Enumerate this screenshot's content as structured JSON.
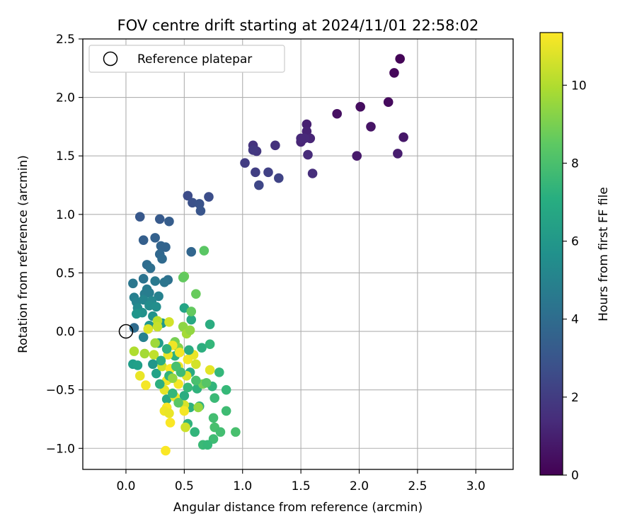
{
  "chart_data": {
    "type": "scatter",
    "title": "FOV centre drift starting at 2024/11/01 22:58:02",
    "xlabel": "Angular distance from reference (arcmin)",
    "ylabel": "Rotation from reference (arcmin)",
    "xlim": [
      -0.37,
      3.32
    ],
    "ylim": [
      -1.18,
      2.5
    ],
    "xticks": [
      0.0,
      0.5,
      1.0,
      1.5,
      2.0,
      2.5,
      3.0
    ],
    "xtick_labels": [
      "0.0",
      "0.5",
      "1.0",
      "1.5",
      "2.0",
      "2.5",
      "3.0"
    ],
    "yticks": [
      -1.0,
      -0.5,
      0.0,
      0.5,
      1.0,
      1.5,
      2.0,
      2.5
    ],
    "ytick_labels": [
      "−1.0",
      "−0.5",
      "0.0",
      "0.5",
      "1.0",
      "1.5",
      "2.0",
      "2.5"
    ],
    "grid": true,
    "legend": {
      "placement": "top-left",
      "label": "Reference platepar"
    },
    "reference_point": {
      "x": 0.0,
      "y": 0.0
    },
    "colorbar": {
      "label": "Hours from first FF file",
      "colormap": "viridis",
      "range": [
        0,
        11.35
      ],
      "ticks": [
        0,
        2,
        4,
        6,
        8,
        10
      ],
      "tick_labels": [
        "0",
        "2",
        "4",
        "6",
        "8",
        "10"
      ]
    },
    "series": [
      {
        "points": [
          [
            2.35,
            2.33,
            0.1
          ],
          [
            2.3,
            2.21,
            0.2
          ],
          [
            2.25,
            1.96,
            0.3
          ],
          [
            2.01,
            1.92,
            0.4
          ],
          [
            1.81,
            1.86,
            0.5
          ],
          [
            2.1,
            1.75,
            0.6
          ],
          [
            2.38,
            1.66,
            0.7
          ],
          [
            1.98,
            1.5,
            0.8
          ],
          [
            2.33,
            1.52,
            0.9
          ],
          [
            1.55,
            1.77,
            1.0
          ],
          [
            1.55,
            1.71,
            1.1
          ],
          [
            1.58,
            1.65,
            1.2
          ],
          [
            1.5,
            1.62,
            1.2
          ],
          [
            1.53,
            1.65,
            1.3
          ],
          [
            1.5,
            1.65,
            1.3
          ],
          [
            1.56,
            1.51,
            1.4
          ],
          [
            1.6,
            1.35,
            1.5
          ],
          [
            1.28,
            1.59,
            1.6
          ],
          [
            1.09,
            1.59,
            1.7
          ],
          [
            1.12,
            1.54,
            1.8
          ],
          [
            1.09,
            1.55,
            1.9
          ],
          [
            1.02,
            1.44,
            2.0
          ],
          [
            1.11,
            1.36,
            2.1
          ],
          [
            1.22,
            1.36,
            2.2
          ],
          [
            1.31,
            1.31,
            2.3
          ],
          [
            1.14,
            1.25,
            2.4
          ],
          [
            0.53,
            1.16,
            2.6
          ],
          [
            0.71,
            1.15,
            2.7
          ],
          [
            0.57,
            1.1,
            2.8
          ],
          [
            0.63,
            1.09,
            2.9
          ],
          [
            0.64,
            1.03,
            3.0
          ],
          [
            0.12,
            0.98,
            3.1
          ],
          [
            0.29,
            0.96,
            3.2
          ],
          [
            0.37,
            0.94,
            3.3
          ],
          [
            0.15,
            0.78,
            3.4
          ],
          [
            0.25,
            0.8,
            3.5
          ],
          [
            0.3,
            0.73,
            3.6
          ],
          [
            0.34,
            0.72,
            3.6
          ],
          [
            0.56,
            0.68,
            3.7
          ],
          [
            0.29,
            0.66,
            3.8
          ],
          [
            0.31,
            0.62,
            3.9
          ],
          [
            0.18,
            0.57,
            4.0
          ],
          [
            0.21,
            0.54,
            4.1
          ],
          [
            0.36,
            0.44,
            4.2
          ],
          [
            0.15,
            0.45,
            4.3
          ],
          [
            0.33,
            0.42,
            4.4
          ],
          [
            0.06,
            0.41,
            4.5
          ],
          [
            0.25,
            0.43,
            4.6
          ],
          [
            0.18,
            0.36,
            4.7
          ],
          [
            0.16,
            0.32,
            4.8
          ],
          [
            0.2,
            0.33,
            4.8
          ],
          [
            0.07,
            0.29,
            4.9
          ],
          [
            0.28,
            0.3,
            5.0
          ],
          [
            0.09,
            0.25,
            5.1
          ],
          [
            0.15,
            0.27,
            5.2
          ],
          [
            0.22,
            0.26,
            5.3
          ],
          [
            0.1,
            0.2,
            5.4
          ],
          [
            0.2,
            0.22,
            5.5
          ],
          [
            0.26,
            0.21,
            5.6
          ],
          [
            0.14,
            0.16,
            5.7
          ],
          [
            0.23,
            0.13,
            5.8
          ],
          [
            0.09,
            0.15,
            5.9
          ],
          [
            0.2,
            0.05,
            6.0
          ],
          [
            0.07,
            0.03,
            4.0
          ],
          [
            0.15,
            -0.05,
            5.0
          ],
          [
            0.31,
            0.07,
            6.1
          ],
          [
            0.28,
            -0.1,
            6.2
          ],
          [
            0.06,
            -0.28,
            6.3
          ],
          [
            0.1,
            -0.29,
            6.4
          ],
          [
            0.26,
            -0.36,
            6.5
          ],
          [
            0.5,
            0.2,
            6.6
          ],
          [
            0.56,
            0.1,
            6.8
          ],
          [
            0.72,
            0.06,
            7.0
          ],
          [
            0.42,
            -0.21,
            7.2
          ],
          [
            0.55,
            -0.35,
            6.9
          ],
          [
            0.65,
            -0.14,
            7.1
          ],
          [
            0.35,
            -0.58,
            6.8
          ],
          [
            0.5,
            -0.55,
            7.0
          ],
          [
            0.55,
            -0.65,
            7.2
          ],
          [
            0.61,
            -0.49,
            7.3
          ],
          [
            0.74,
            -0.47,
            7.4
          ],
          [
            0.8,
            -0.35,
            7.5
          ],
          [
            0.86,
            -0.5,
            7.6
          ],
          [
            0.76,
            -0.57,
            7.7
          ],
          [
            0.86,
            -0.68,
            7.8
          ],
          [
            0.75,
            -0.74,
            7.9
          ],
          [
            0.76,
            -0.82,
            8.0
          ],
          [
            0.81,
            -0.86,
            7.9
          ],
          [
            0.94,
            -0.86,
            8.0
          ],
          [
            0.75,
            -0.92,
            7.8
          ],
          [
            0.66,
            -0.97,
            7.7
          ],
          [
            0.7,
            -0.97,
            7.6
          ],
          [
            0.59,
            -0.86,
            7.4
          ],
          [
            0.53,
            -0.79,
            7.3
          ],
          [
            0.63,
            -0.64,
            7.2
          ],
          [
            0.72,
            -0.11,
            7.5
          ],
          [
            0.56,
            0.17,
            8.6
          ],
          [
            0.6,
            0.32,
            8.7
          ],
          [
            0.5,
            0.47,
            8.8
          ],
          [
            0.49,
            0.46,
            8.6
          ],
          [
            0.67,
            0.69,
            8.4
          ],
          [
            0.42,
            -0.09,
            9.0
          ],
          [
            0.45,
            -0.14,
            9.2
          ],
          [
            0.37,
            0.08,
            10.6
          ],
          [
            0.27,
            0.09,
            10.2
          ],
          [
            0.27,
            0.04,
            10.4
          ],
          [
            0.19,
            0.02,
            10.8
          ],
          [
            0.25,
            -0.1,
            9.7
          ],
          [
            0.16,
            -0.19,
            9.8
          ],
          [
            0.07,
            -0.17,
            10.0
          ],
          [
            0.24,
            -0.2,
            10.3
          ],
          [
            0.31,
            -0.3,
            10.5
          ],
          [
            0.36,
            -0.2,
            11.0
          ],
          [
            0.4,
            -0.12,
            11.1
          ],
          [
            0.46,
            -0.18,
            11.2
          ],
          [
            0.38,
            -0.32,
            11.3
          ],
          [
            0.45,
            -0.3,
            11.1
          ],
          [
            0.53,
            -0.24,
            11.2
          ],
          [
            0.58,
            -0.2,
            11.0
          ],
          [
            0.6,
            -0.28,
            10.6
          ],
          [
            0.72,
            -0.33,
            10.9
          ],
          [
            0.52,
            -0.38,
            10.8
          ],
          [
            0.35,
            -0.42,
            11.1
          ],
          [
            0.33,
            -0.5,
            10.9
          ],
          [
            0.45,
            -0.45,
            11.2
          ],
          [
            0.42,
            -0.56,
            11.0
          ],
          [
            0.5,
            -0.63,
            10.7
          ],
          [
            0.35,
            -0.65,
            11.3
          ],
          [
            0.33,
            -0.68,
            11.1
          ],
          [
            0.37,
            -0.7,
            11.0
          ],
          [
            0.38,
            -0.78,
            11.3
          ],
          [
            0.5,
            -0.68,
            11.2
          ],
          [
            0.51,
            -0.82,
            10.5
          ],
          [
            0.12,
            -0.38,
            11.0
          ],
          [
            0.17,
            -0.46,
            11.2
          ],
          [
            0.34,
            -1.02,
            11.3
          ],
          [
            0.49,
            0.04,
            9.4
          ],
          [
            0.52,
            -0.02,
            9.8
          ],
          [
            0.55,
            0.01,
            9.5
          ],
          [
            0.66,
            -0.45,
            9.0
          ],
          [
            0.69,
            -0.44,
            8.3
          ],
          [
            0.6,
            -0.42,
            8.0
          ],
          [
            0.53,
            -0.48,
            7.6
          ],
          [
            0.47,
            -0.35,
            7.8
          ],
          [
            0.4,
            -0.53,
            7.5
          ],
          [
            0.45,
            -0.61,
            8.4
          ],
          [
            0.62,
            -0.65,
            9.6
          ],
          [
            0.3,
            -0.25,
            7.0
          ],
          [
            0.37,
            -0.38,
            7.3
          ],
          [
            0.23,
            -0.28,
            6.0
          ],
          [
            0.35,
            -0.15,
            7.2
          ],
          [
            0.43,
            -0.3,
            8.0
          ],
          [
            0.54,
            -0.16,
            7.0
          ],
          [
            0.29,
            -0.45,
            7.1
          ],
          [
            0.4,
            -0.4,
            9.5
          ]
        ]
      }
    ]
  }
}
